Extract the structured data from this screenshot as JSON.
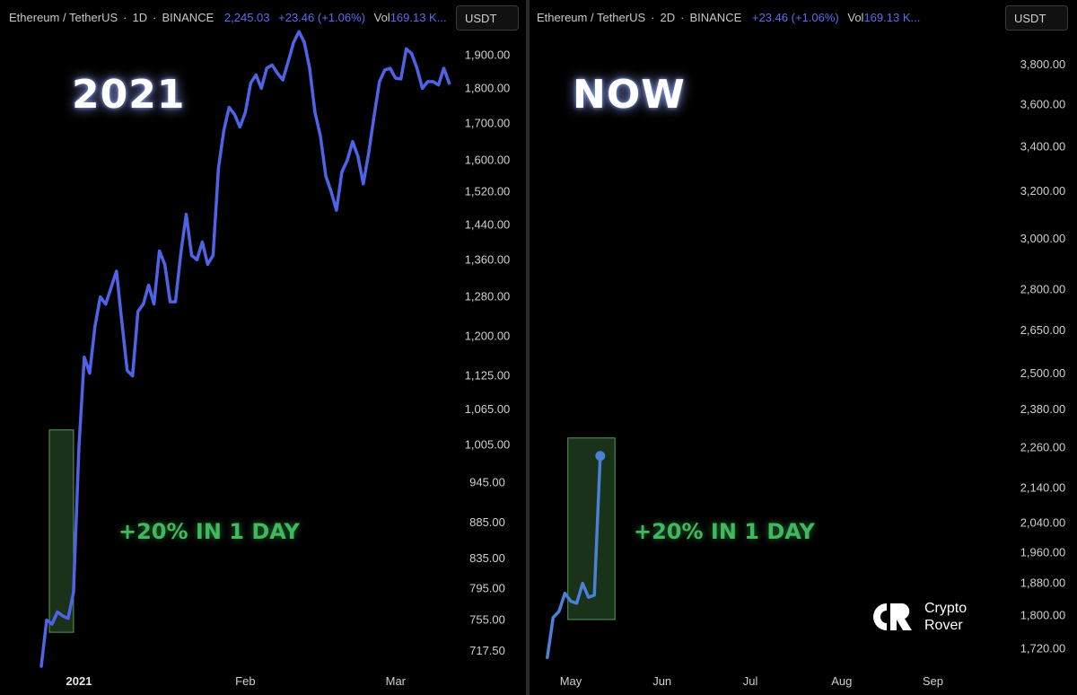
{
  "left_panel": {
    "legend": {
      "symbol": "Ethereum / TetherUS",
      "interval": "1D",
      "exchange": "BINANCE",
      "price": "2,245.03",
      "change": "+23.46 (+1.06%)",
      "vol_label": "Vol",
      "vol_value": "169.13 K..."
    },
    "currency_button": "USDT",
    "title": "2021",
    "callout": "+20% IN 1 DAY"
  },
  "right_panel": {
    "legend": {
      "symbol": "Ethereum / TetherUS",
      "interval": "2D",
      "exchange": "BINANCE",
      "change": "+23.46 (+1.06%)",
      "vol_label": "Vol",
      "vol_value": "169.13 K..."
    },
    "currency_button": "USDT",
    "title": "NOW",
    "callout": "+20% IN 1 DAY",
    "logo": {
      "line1": "Crypto",
      "line2": "Rover"
    }
  },
  "colors": {
    "line": "#4f63e6",
    "line_right": "#4a80d6",
    "highlight_fill": "#1f3a1f",
    "highlight_stroke": "#5a9a5a",
    "callout": "#3fb85e"
  },
  "chart_data": [
    {
      "type": "line",
      "title": "",
      "ylabel": "",
      "xlabel": "",
      "scale": "log",
      "ylim": [
        700,
        1990
      ],
      "y_ticks": [
        "1,900.00",
        "1,800.00",
        "1,700.00",
        "1,600.00",
        "1,520.00",
        "1,440.00",
        "1,360.00",
        "1,280.00",
        "1,200.00",
        "1,125.00",
        "1,065.00",
        "1,005.00",
        "945.00",
        "885.00",
        "835.00",
        "795.00",
        "755.00",
        "717.50"
      ],
      "x_ticks": [
        {
          "label": "2021",
          "day": 0,
          "bold": true
        },
        {
          "label": "Feb",
          "day": 31,
          "bold": false
        },
        {
          "label": "Mar",
          "day": 59,
          "bold": false
        }
      ],
      "series": [
        {
          "values": [
            {
              "day": -2,
              "price": 700
            },
            {
              "day": -1,
              "price": 755
            },
            {
              "day": 0,
              "price": 750
            },
            {
              "day": 1,
              "price": 765
            },
            {
              "day": 2,
              "price": 760
            },
            {
              "day": 3,
              "price": 757
            },
            {
              "day": 4,
              "price": 790
            },
            {
              "day": 5,
              "price": 1000
            },
            {
              "day": 6,
              "price": 1160
            },
            {
              "day": 7,
              "price": 1130
            },
            {
              "day": 8,
              "price": 1220
            },
            {
              "day": 9,
              "price": 1280
            },
            {
              "day": 10,
              "price": 1265
            },
            {
              "day": 11,
              "price": 1300
            },
            {
              "day": 12,
              "price": 1335
            },
            {
              "day": 13,
              "price": 1230
            },
            {
              "day": 14,
              "price": 1135
            },
            {
              "day": 15,
              "price": 1125
            },
            {
              "day": 16,
              "price": 1250
            },
            {
              "day": 17,
              "price": 1265
            },
            {
              "day": 18,
              "price": 1305
            },
            {
              "day": 19,
              "price": 1265
            },
            {
              "day": 20,
              "price": 1380
            },
            {
              "day": 21,
              "price": 1350
            },
            {
              "day": 22,
              "price": 1270
            },
            {
              "day": 23,
              "price": 1270
            },
            {
              "day": 24,
              "price": 1375
            },
            {
              "day": 25,
              "price": 1465
            },
            {
              "day": 26,
              "price": 1370
            },
            {
              "day": 27,
              "price": 1360
            },
            {
              "day": 28,
              "price": 1400
            },
            {
              "day": 29,
              "price": 1350
            },
            {
              "day": 30,
              "price": 1370
            },
            {
              "day": 31,
              "price": 1580
            },
            {
              "day": 32,
              "price": 1680
            },
            {
              "day": 33,
              "price": 1745
            },
            {
              "day": 34,
              "price": 1725
            },
            {
              "day": 35,
              "price": 1690
            },
            {
              "day": 36,
              "price": 1730
            },
            {
              "day": 37,
              "price": 1815
            },
            {
              "day": 38,
              "price": 1840
            },
            {
              "day": 39,
              "price": 1800
            },
            {
              "day": 40,
              "price": 1860
            },
            {
              "day": 41,
              "price": 1870
            },
            {
              "day": 42,
              "price": 1845
            },
            {
              "day": 43,
              "price": 1825
            },
            {
              "day": 44,
              "price": 1880
            },
            {
              "day": 45,
              "price": 1940
            },
            {
              "day": 46,
              "price": 1975
            },
            {
              "day": 47,
              "price": 1940
            },
            {
              "day": 48,
              "price": 1860
            },
            {
              "day": 49,
              "price": 1730
            },
            {
              "day": 50,
              "price": 1665
            },
            {
              "day": 51,
              "price": 1560
            },
            {
              "day": 52,
              "price": 1520
            },
            {
              "day": 53,
              "price": 1475
            },
            {
              "day": 54,
              "price": 1570
            },
            {
              "day": 55,
              "price": 1600
            },
            {
              "day": 56,
              "price": 1650
            },
            {
              "day": 57,
              "price": 1610
            },
            {
              "day": 58,
              "price": 1540
            },
            {
              "day": 59,
              "price": 1620
            },
            {
              "day": 60,
              "price": 1720
            },
            {
              "day": 61,
              "price": 1820
            },
            {
              "day": 62,
              "price": 1855
            },
            {
              "day": 63,
              "price": 1860
            },
            {
              "day": 64,
              "price": 1830
            },
            {
              "day": 65,
              "price": 1828
            },
            {
              "day": 66,
              "price": 1920
            },
            {
              "day": 67,
              "price": 1905
            },
            {
              "day": 68,
              "price": 1860
            },
            {
              "day": 69,
              "price": 1800
            },
            {
              "day": 70,
              "price": 1820
            },
            {
              "day": 71,
              "price": 1820
            },
            {
              "day": 72,
              "price": 1810
            },
            {
              "day": 73,
              "price": 1860
            },
            {
              "day": 74,
              "price": 1815
            }
          ]
        }
      ],
      "highlight": {
        "day_start": -0.5,
        "day_end": 4,
        "price_low": 740,
        "price_high": 1030
      }
    },
    {
      "type": "line",
      "title": "",
      "ylabel": "",
      "xlabel": "",
      "scale": "log",
      "ylim": [
        1680,
        4000
      ],
      "y_ticks": [
        "3,800.00",
        "3,600.00",
        "3,400.00",
        "3,200.00",
        "3,000.00",
        "2,800.00",
        "2,650.00",
        "2,500.00",
        "2,380.00",
        "2,260.00",
        "2,140.00",
        "2,040.00",
        "1,960.00",
        "1,880.00",
        "1,800.00",
        "1,720.00"
      ],
      "x_ticks": [
        {
          "label": "May",
          "day": 0,
          "bold": false
        },
        {
          "label": "Jun",
          "day": 31,
          "bold": false
        },
        {
          "label": "Jul",
          "day": 61,
          "bold": false
        },
        {
          "label": "Aug",
          "day": 92,
          "bold": false
        },
        {
          "label": "Sep",
          "day": 123,
          "bold": false
        }
      ],
      "series": [
        {
          "values": [
            {
              "day": -8,
              "price": 1700
            },
            {
              "day": -6,
              "price": 1795
            },
            {
              "day": -4,
              "price": 1810
            },
            {
              "day": -2,
              "price": 1855
            },
            {
              "day": 0,
              "price": 1835
            },
            {
              "day": 2,
              "price": 1830
            },
            {
              "day": 4,
              "price": 1880
            },
            {
              "day": 6,
              "price": 1845
            },
            {
              "day": 8,
              "price": 1850
            },
            {
              "day": 10,
              "price": 2235
            }
          ]
        }
      ],
      "highlight": {
        "day_start": -1,
        "day_end": 15,
        "price_low": 1790,
        "price_high": 2290
      }
    }
  ]
}
